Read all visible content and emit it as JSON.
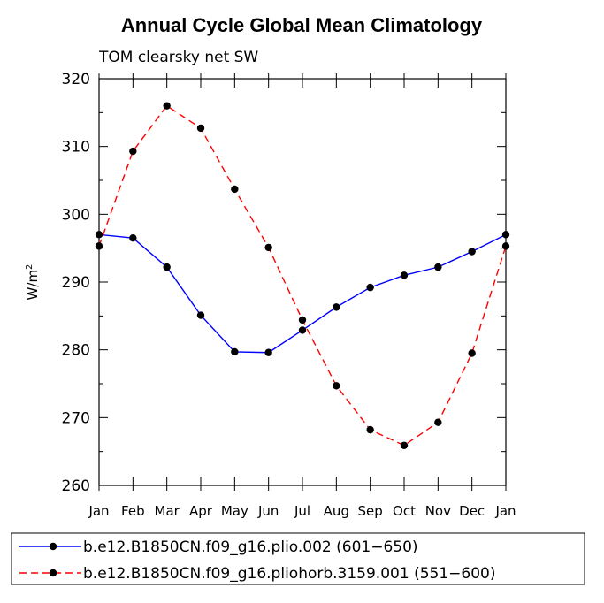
{
  "chart_data": {
    "type": "line",
    "title": "Annual Cycle Global Mean Climatology",
    "subtitle": "TOM clearsky net SW",
    "ylabel_base": "W/m",
    "ylabel_sup": "2",
    "xlabel": "",
    "ylim": [
      260,
      320
    ],
    "yticks": [
      260,
      270,
      280,
      290,
      300,
      310,
      320
    ],
    "yticklabels": [
      "260",
      "270",
      "280",
      "290",
      "300",
      "310",
      "320"
    ],
    "categories": [
      "Jan",
      "Feb",
      "Mar",
      "Apr",
      "May",
      "Jun",
      "Jul",
      "Aug",
      "Sep",
      "Oct",
      "Nov",
      "Dec",
      "Jan"
    ],
    "series": [
      {
        "name": "b.e12.B1850CN.f09_g16.plio.002 (601−650)",
        "color": "#0000ff",
        "dash": "solid",
        "values": [
          297.0,
          296.5,
          292.2,
          285.1,
          279.7,
          279.6,
          282.9,
          286.3,
          289.2,
          291.0,
          292.2,
          294.5,
          297.0
        ]
      },
      {
        "name": "b.e12.B1850CN.f09_g16.pliohorb.3159.001 (551−600)",
        "color": "#ff0000",
        "dash": "dashed",
        "values": [
          295.3,
          309.3,
          316.0,
          312.7,
          303.7,
          295.1,
          284.4,
          274.7,
          268.2,
          265.9,
          269.3,
          279.5,
          295.3
        ]
      }
    ],
    "legend_position": "bottom"
  }
}
